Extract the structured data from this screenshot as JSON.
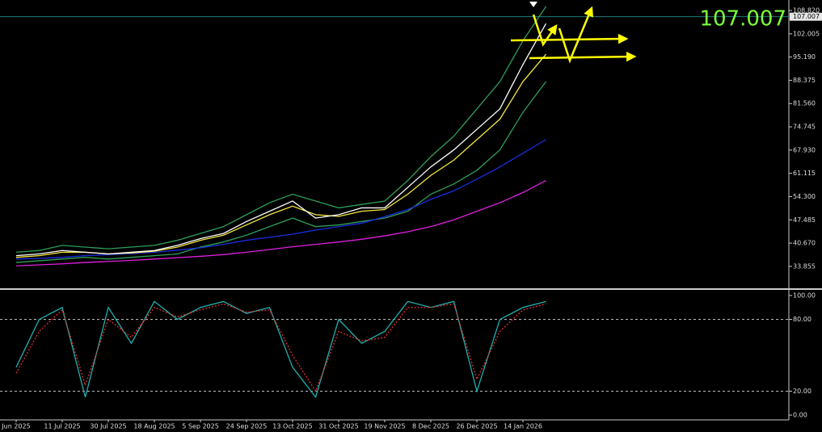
{
  "chart_data": [
    {
      "type": "line",
      "current_price": 107.007,
      "categories": [
        "Jun 2025",
        null,
        "11 Jul 2025",
        null,
        "30 Jul 2025",
        null,
        "18 Aug 2025",
        null,
        "5 Sep 2025",
        null,
        "24 Sep 2025",
        null,
        "13 Oct 2025",
        null,
        "31 Oct 2025",
        null,
        "19 Nov 2025",
        null,
        "8 Dec 2025",
        null,
        "26 Dec 2025",
        null,
        "14 Jan 2026",
        null
      ],
      "ylim": [
        27.44,
        111.9
      ],
      "yticks": [
        {
          "value": 108.82,
          "label": "108.820"
        },
        {
          "value": 102.005,
          "label": "102.005"
        },
        {
          "value": 95.19,
          "label": "95.190"
        },
        {
          "value": 88.375,
          "label": "88.375"
        },
        {
          "value": 81.56,
          "label": "81.560"
        },
        {
          "value": 74.745,
          "label": "74.745"
        },
        {
          "value": 67.93,
          "label": "67.930"
        },
        {
          "value": 61.115,
          "label": "61.115"
        },
        {
          "value": 54.3,
          "label": "54.300"
        },
        {
          "value": 47.485,
          "label": "47.485"
        },
        {
          "value": 40.67,
          "label": "40.670"
        },
        {
          "value": 33.855,
          "label": "33.855"
        }
      ],
      "series": [
        {
          "color": "#2e9e5a",
          "values": [
            38,
            38.5,
            40,
            39.5,
            39,
            39.5,
            40,
            41.5,
            43.5,
            45.5,
            49,
            52.5,
            55,
            53,
            51,
            52,
            53,
            59,
            66,
            72,
            80,
            88,
            100,
            110
          ]
        },
        {
          "color": "#2e9e5a",
          "values": [
            35,
            35.5,
            36,
            36.5,
            36,
            36.5,
            37,
            37.5,
            39.5,
            41,
            43,
            45.5,
            48,
            45.5,
            46,
            47,
            48,
            50,
            55,
            58,
            62,
            68,
            79,
            88
          ]
        },
        {
          "color": "#e020e0",
          "values": [
            34,
            34.3,
            34.6,
            35,
            35.3,
            35.6,
            36,
            36.4,
            36.8,
            37.3,
            38,
            38.8,
            39.6,
            40.3,
            41,
            41.8,
            42.8,
            44,
            45.5,
            47.5,
            50,
            52.5,
            55.5,
            59
          ]
        },
        {
          "color": "#1a2ee0",
          "values": [
            36,
            36.2,
            36.5,
            37,
            37.3,
            37.6,
            38,
            38.6,
            39.3,
            40.3,
            41.5,
            42.4,
            43.3,
            44.5,
            45.5,
            46.5,
            48.4,
            50.5,
            53.5,
            56,
            59.4,
            63,
            67,
            71
          ]
        },
        {
          "color": "#f5e63c",
          "values": [
            36.5,
            37,
            38,
            38,
            37.5,
            37.8,
            38.3,
            39.5,
            41.5,
            43,
            46,
            49,
            51.5,
            49,
            48.5,
            50,
            50.5,
            55,
            60.5,
            65,
            71,
            77,
            88,
            96
          ]
        },
        {
          "color": "#ffffff",
          "values": [
            37,
            37.5,
            38.5,
            38,
            37.5,
            38,
            38.5,
            40,
            42,
            43.5,
            47,
            50,
            53,
            48,
            49,
            51,
            51,
            57,
            63,
            68,
            74,
            80,
            93,
            105
          ]
        }
      ]
    },
    {
      "type": "line",
      "ylim": [
        -4,
        104
      ],
      "yticks": [
        {
          "value": 100,
          "label": "100.00"
        },
        {
          "value": 80,
          "label": "80.00"
        },
        {
          "value": 20,
          "label": "20.00"
        },
        {
          "value": 0,
          "label": "0.00"
        }
      ],
      "levels": [
        80,
        20
      ],
      "series": [
        {
          "color": "#20b0b0",
          "values": [
            40,
            80,
            90,
            15,
            90,
            60,
            95,
            80,
            90,
            95,
            85,
            90,
            40,
            15,
            80,
            60,
            70,
            95,
            90,
            95,
            20,
            80,
            90,
            95
          ]
        },
        {
          "color": "#e03030",
          "dash": true,
          "values": [
            35,
            70,
            88,
            25,
            80,
            65,
            90,
            82,
            88,
            93,
            86,
            88,
            50,
            20,
            70,
            62,
            65,
            90,
            90,
            93,
            30,
            70,
            88,
            93
          ]
        }
      ]
    }
  ]
}
